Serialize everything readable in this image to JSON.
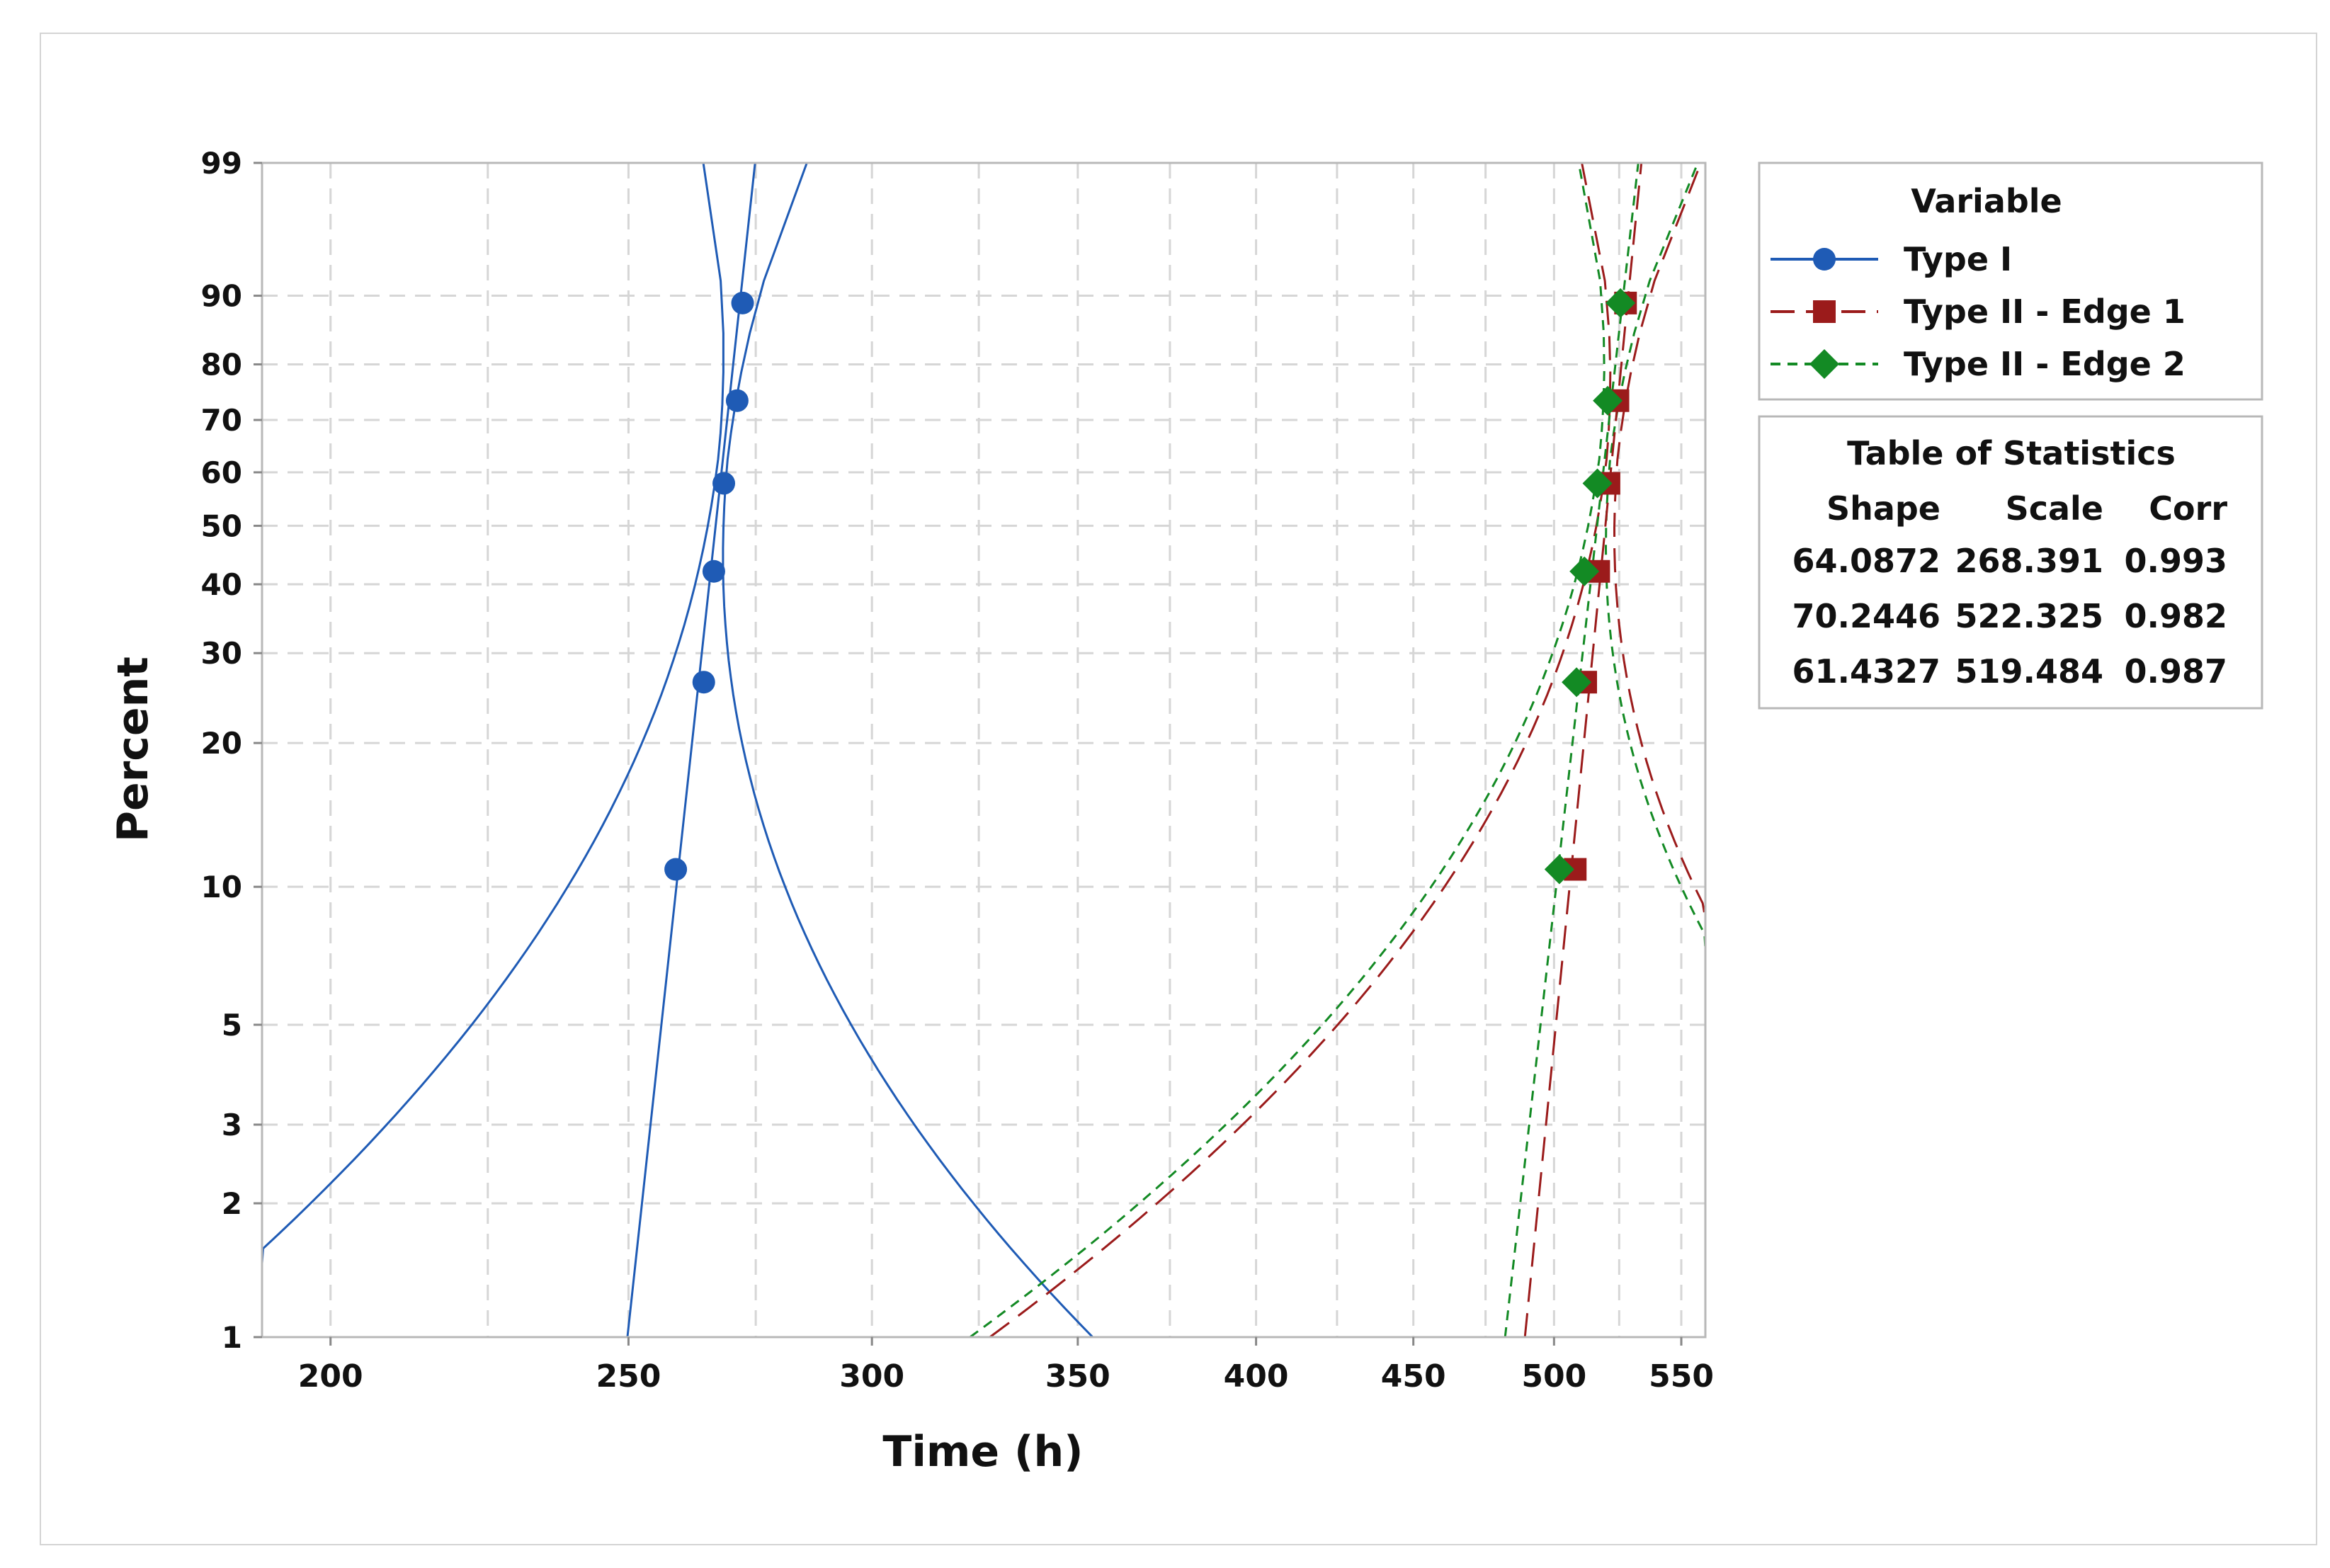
{
  "chart_data": {
    "type": "scatter",
    "xlabel": "Time (h)",
    "ylabel": "Percent",
    "x_scale": "log",
    "y_scale": "weibull-probability",
    "xlim": [
      190,
      560
    ],
    "ylim": [
      1,
      99
    ],
    "x_ticks": [
      200,
      250,
      300,
      350,
      400,
      450,
      500,
      550
    ],
    "y_ticks": [
      1,
      2,
      3,
      5,
      10,
      20,
      30,
      40,
      50,
      60,
      70,
      80,
      90,
      99
    ],
    "grid": true,
    "legend": {
      "title": "Variable",
      "placement": "right",
      "items": [
        {
          "label": "Type I",
          "color": "#1f5bb5",
          "marker": "circle",
          "line": "solid"
        },
        {
          "label": "Type II - Edge 1",
          "color": "#9b1b1b",
          "marker": "square",
          "line": "long-dash"
        },
        {
          "label": "Type II - Edge 2",
          "color": "#138a24",
          "marker": "diamond",
          "line": "short-dash"
        }
      ]
    },
    "statistics_table": {
      "title": "Table of Statistics",
      "headers": [
        "Shape",
        "Scale",
        "Corr"
      ],
      "rows": [
        [
          "64.0872",
          "268.391",
          "0.993"
        ],
        [
          "70.2446",
          "522.325",
          "0.982"
        ],
        [
          "61.4327",
          "519.484",
          "0.987"
        ]
      ]
    },
    "series": [
      {
        "name": "Type I",
        "color": "#1f5bb5",
        "shape": 64.0872,
        "scale": 268.391,
        "x": [
          259,
          264.5,
          266.5,
          268.5,
          271.2,
          272.3
        ],
        "y": [
          10.9,
          26.4,
          42.1,
          57.9,
          73.6,
          89.1
        ]
      },
      {
        "name": "Type II - Edge 1",
        "color": "#9b1b1b",
        "shape": 70.2446,
        "scale": 522.325,
        "x": [
          508,
          512,
          517,
          521,
          524.5,
          527.5
        ],
        "y": [
          10.9,
          26.4,
          42.1,
          57.9,
          73.6,
          89.1
        ]
      },
      {
        "name": "Type II - Edge 2",
        "color": "#138a24",
        "shape": 61.4327,
        "scale": 519.484,
        "x": [
          502,
          508.5,
          511.5,
          516.5,
          520.5,
          525.5
        ],
        "y": [
          10.9,
          26.4,
          42.1,
          57.9,
          73.6,
          89.1
        ]
      }
    ]
  }
}
